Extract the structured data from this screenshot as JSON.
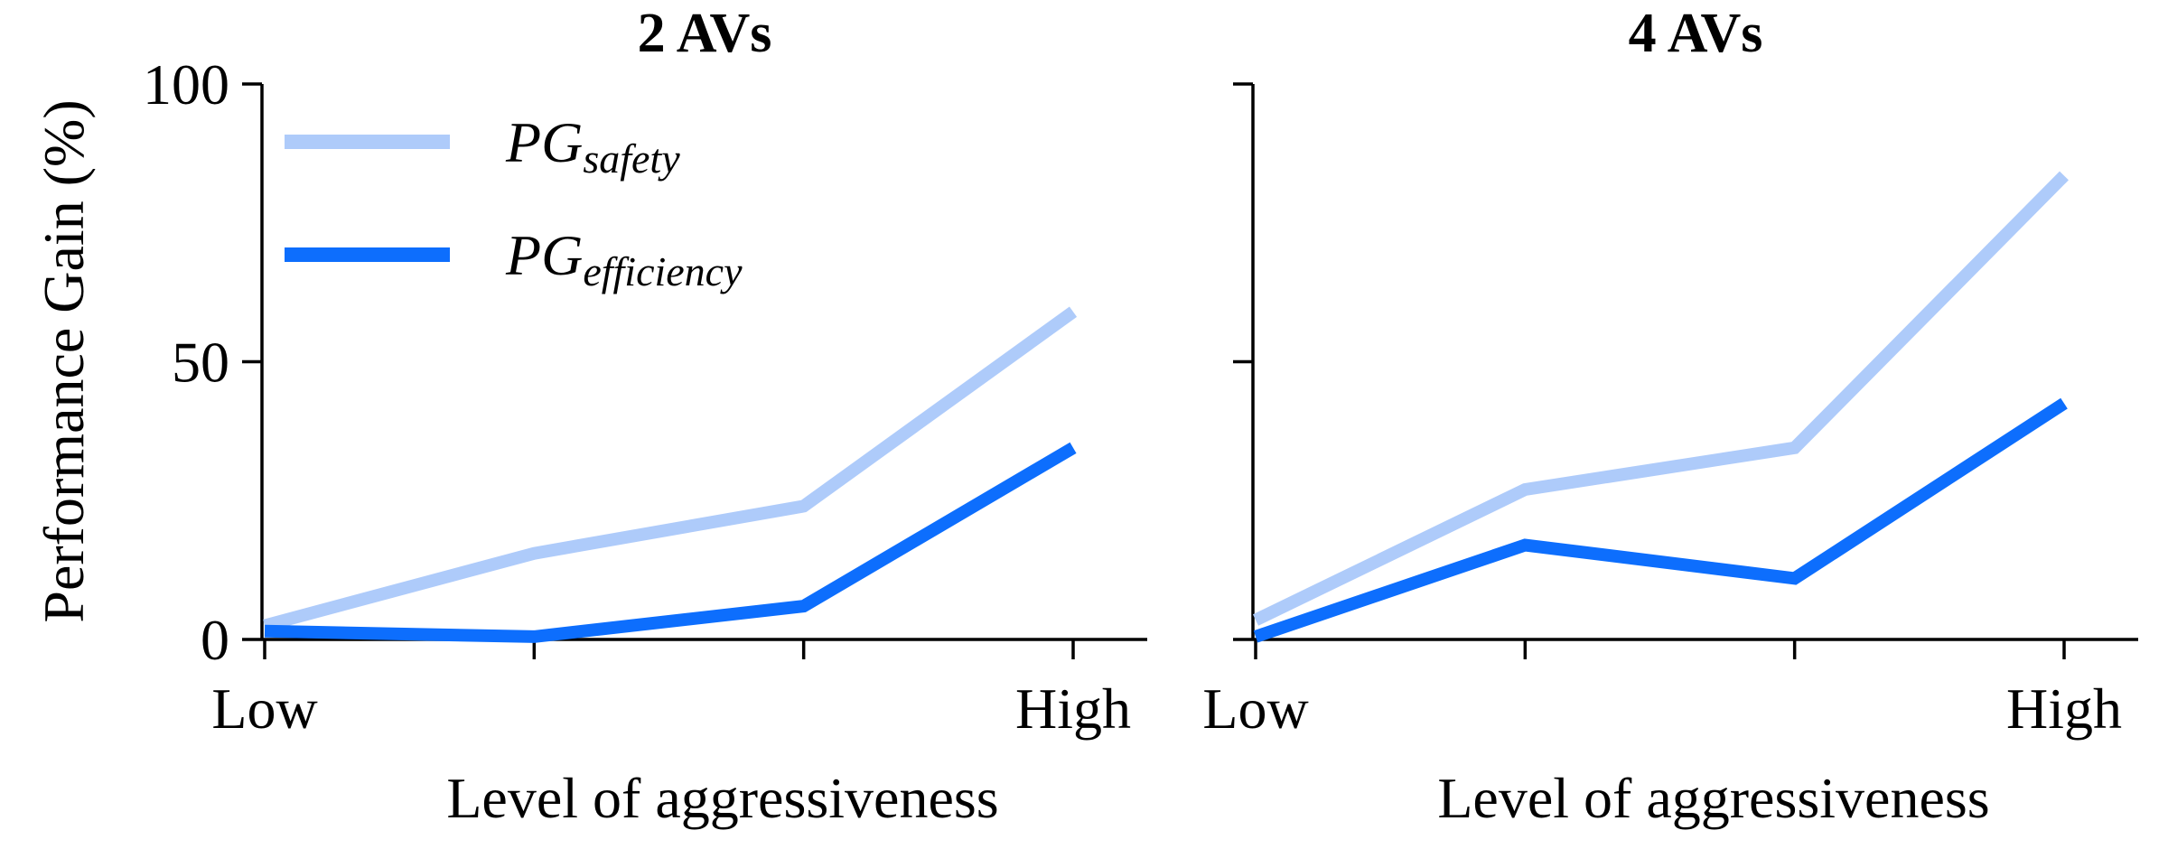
{
  "chart_data": {
    "type": "line",
    "ylabel": "Performance Gain (%)",
    "ylim": [
      0,
      100
    ],
    "yticks": [
      0,
      50,
      100
    ],
    "xticks": [
      0,
      1,
      2,
      3
    ],
    "xtick_labels": [
      "Low",
      "",
      "",
      "High"
    ],
    "legend": {
      "position": "top-left",
      "entries": [
        {
          "main": "PG",
          "sub": "safety",
          "color": "#aecbfa"
        },
        {
          "main": "PG",
          "sub": "efficiency",
          "color": "#0d6efd"
        }
      ]
    },
    "panels": [
      {
        "title": "2 AVs",
        "xlabel": "Level of aggressiveness",
        "series": [
          {
            "name": "PG_safety",
            "color": "#aecbfa",
            "values": [
              2.5,
              15.5,
              24,
              59
            ]
          },
          {
            "name": "PG_efficiency",
            "color": "#0d6efd",
            "values": [
              1.5,
              0.5,
              6,
              34.5
            ]
          }
        ]
      },
      {
        "title": "4 AVs",
        "xlabel": "Level of aggressiveness",
        "series": [
          {
            "name": "PG_safety",
            "color": "#aecbfa",
            "values": [
              3.5,
              27,
              34.5,
              83.5
            ]
          },
          {
            "name": "PG_efficiency",
            "color": "#0d6efd",
            "values": [
              0.5,
              17,
              11,
              42.5
            ]
          }
        ]
      }
    ]
  }
}
